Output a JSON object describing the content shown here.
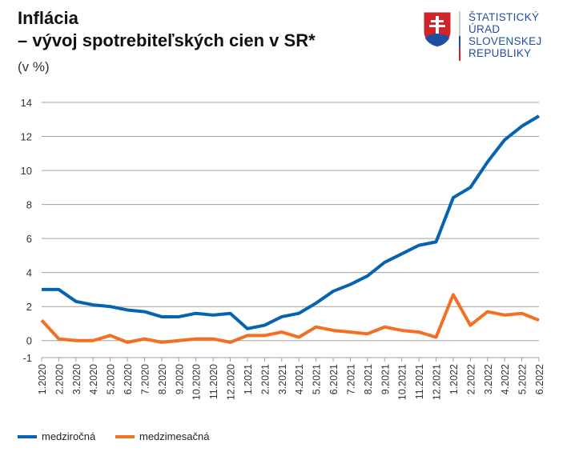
{
  "header": {
    "title_line1": "Inflácia",
    "title_line2": "– vývoj spotrebiteľských cien v SR*",
    "unit": "(v %)"
  },
  "logo": {
    "lines": [
      "ŠTATISTICKÝ",
      "ÚRAD",
      "SLOVENSKEJ",
      "REPUBLIKY"
    ]
  },
  "chart_data": {
    "type": "line",
    "title": "Inflácia – vývoj spotrebiteľských cien v SR*",
    "ylabel": "(v %)",
    "ylim": [
      -1,
      14
    ],
    "yticks": [
      14,
      12,
      10,
      8,
      6,
      4,
      2,
      0,
      -1
    ],
    "grid": true,
    "legend_position": "bottom-left",
    "categories": [
      "1.2020",
      "2.2020",
      "3.2020",
      "4.2020",
      "5.2020",
      "6.2020",
      "7.2020",
      "8.2020",
      "9.2020",
      "10.2020",
      "11.2020",
      "12.2020",
      "1.2021",
      "2.2021",
      "3.2021",
      "4.2021",
      "5.2021",
      "6.2021",
      "7.2021",
      "8.2021",
      "9.2021",
      "10.2021",
      "11.2021",
      "12.2021",
      "1.2022",
      "2.2022",
      "3.2022",
      "4.2022",
      "5.2022",
      "6.2022"
    ],
    "series": [
      {
        "name": "medziročná",
        "color": "#0563b0",
        "values": [
          3.0,
          3.0,
          2.3,
          2.1,
          2.0,
          1.8,
          1.7,
          1.4,
          1.4,
          1.6,
          1.5,
          1.6,
          0.7,
          0.9,
          1.4,
          1.6,
          2.2,
          2.9,
          3.3,
          3.8,
          4.6,
          5.1,
          5.6,
          5.8,
          8.4,
          9.0,
          10.5,
          11.8,
          12.6,
          13.2
        ]
      },
      {
        "name": "medzimesačná",
        "color": "#f36f21",
        "values": [
          1.2,
          0.1,
          0.0,
          0.0,
          0.3,
          -0.1,
          0.1,
          -0.1,
          0.0,
          0.1,
          0.1,
          -0.1,
          0.3,
          0.3,
          0.5,
          0.2,
          0.8,
          0.6,
          0.5,
          0.4,
          0.8,
          0.6,
          0.5,
          0.2,
          2.7,
          0.9,
          1.7,
          1.5,
          1.6,
          1.2
        ]
      }
    ]
  }
}
